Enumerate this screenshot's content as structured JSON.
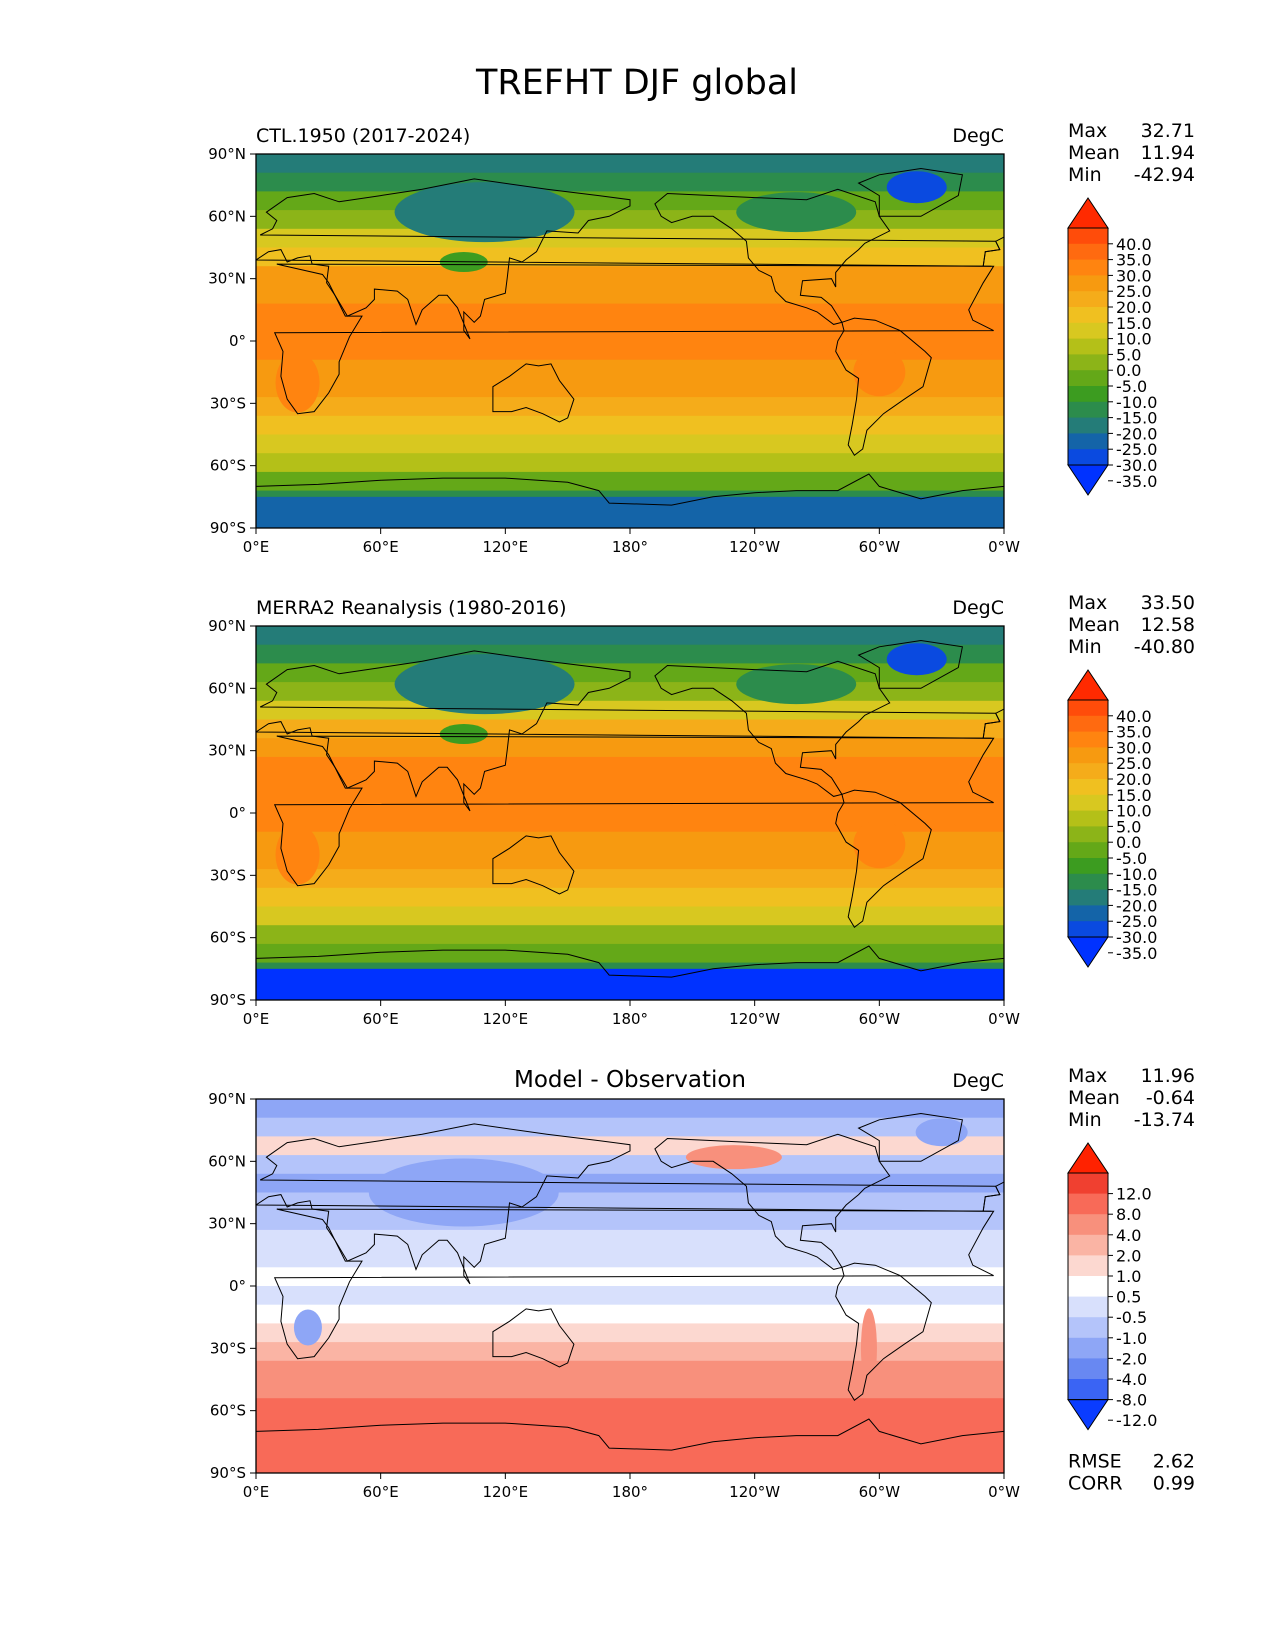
{
  "figure": {
    "title": "TREFHT DJF global",
    "x_ticks": [
      "0°E",
      "60°E",
      "120°E",
      "180°",
      "120°W",
      "60°W",
      "0°W"
    ],
    "y_ticks": [
      "90°N",
      "60°N",
      "30°N",
      "0°",
      "30°S",
      "60°S",
      "90°S"
    ]
  },
  "panels": [
    {
      "kind": "field",
      "title_left": "CTL.1950 (2017-2024)",
      "units": "DegC",
      "stats": [
        {
          "label": "Max",
          "value": "32.71"
        },
        {
          "label": "Mean",
          "value": "11.94"
        },
        {
          "label": "Min",
          "value": "-42.94"
        }
      ],
      "colorbar": {
        "labels": [
          "40.0",
          "35.0",
          "30.0",
          "25.0",
          "20.0",
          "15.0",
          "10.0",
          "5.0",
          "0.0",
          "-5.0",
          "-10.0",
          "-15.0",
          "-20.0",
          "-25.0",
          "-30.0",
          "-35.0"
        ],
        "colors_top_to_bottom": [
          "#ff2a00",
          "#ff4c0a",
          "#ff6a10",
          "#ff8410",
          "#f79a10",
          "#f5ac1a",
          "#f0c020",
          "#d8c820",
          "#b4c018",
          "#8cb418",
          "#64a818",
          "#3c9c20",
          "#2c8c4c",
          "#247c78",
          "#1464a8",
          "#0a4ae0",
          "#0032ff"
        ]
      },
      "map": {
        "zonal_temperature_degc_north_to_south": [
          -25,
          -18,
          -10,
          -2,
          6,
          14,
          20,
          24,
          26,
          27,
          26,
          24,
          20,
          15,
          10,
          5,
          0,
          -6,
          -16,
          -26
        ],
        "antarctic_interior_degc": -28,
        "greenland_interior_degc": -34
      }
    },
    {
      "kind": "field",
      "title_left": "MERRA2 Reanalysis (1980-2016)",
      "units": "DegC",
      "stats": [
        {
          "label": "Max",
          "value": "33.50"
        },
        {
          "label": "Mean",
          "value": "12.58"
        },
        {
          "label": "Min",
          "value": "-40.80"
        }
      ],
      "colorbar": {
        "labels": [
          "40.0",
          "35.0",
          "30.0",
          "25.0",
          "20.0",
          "15.0",
          "10.0",
          "5.0",
          "0.0",
          "-5.0",
          "-10.0",
          "-15.0",
          "-20.0",
          "-25.0",
          "-30.0",
          "-35.0"
        ],
        "colors_top_to_bottom": [
          "#ff2a00",
          "#ff4c0a",
          "#ff6a10",
          "#ff8410",
          "#f79a10",
          "#f5ac1a",
          "#f0c020",
          "#d8c820",
          "#b4c018",
          "#8cb418",
          "#64a818",
          "#3c9c20",
          "#2c8c4c",
          "#247c78",
          "#1464a8",
          "#0a4ae0",
          "#0032ff"
        ]
      },
      "map": {
        "zonal_temperature_degc_north_to_south": [
          -24,
          -17,
          -9,
          -1,
          7,
          15,
          21,
          25,
          27,
          27,
          26,
          24,
          20,
          15,
          10,
          5,
          -1,
          -8,
          -20,
          -32
        ],
        "antarctic_interior_degc": -36,
        "greenland_interior_degc": -34
      }
    },
    {
      "kind": "diff",
      "title_center": "Model - Observation",
      "units": "DegC",
      "stats": [
        {
          "label": "Max",
          "value": "11.96"
        },
        {
          "label": "Mean",
          "value": "-0.64"
        },
        {
          "label": "Min",
          "value": "-13.74"
        }
      ],
      "extra_stats": [
        {
          "label": "RMSE",
          "value": "2.62"
        },
        {
          "label": "CORR",
          "value": "0.99"
        }
      ],
      "colorbar": {
        "labels": [
          "12.0",
          "8.0",
          "4.0",
          "2.0",
          "1.0",
          "0.5",
          "-0.5",
          "-1.0",
          "-2.0",
          "-4.0",
          "-8.0",
          "-12.0"
        ],
        "colors_top_to_bottom": [
          "#ff2200",
          "#f04030",
          "#f86a58",
          "#f8907c",
          "#fab4a4",
          "#fcd8d0",
          "#ffffff",
          "#d8e0fc",
          "#b4c4fa",
          "#8ea6f6",
          "#6888f2",
          "#3a64f4",
          "#0a3cff"
        ]
      },
      "map": {
        "zonal_difference_degc_north_to_south": [
          -2.5,
          -1.5,
          0.6,
          -1.5,
          -2.5,
          -2.0,
          -1.2,
          -1.0,
          -0.8,
          -0.5,
          -0.7,
          0.0,
          0.7,
          1.8,
          2.5,
          3.0,
          4.0,
          5.0,
          5.5,
          5.0
        ]
      }
    }
  ]
}
